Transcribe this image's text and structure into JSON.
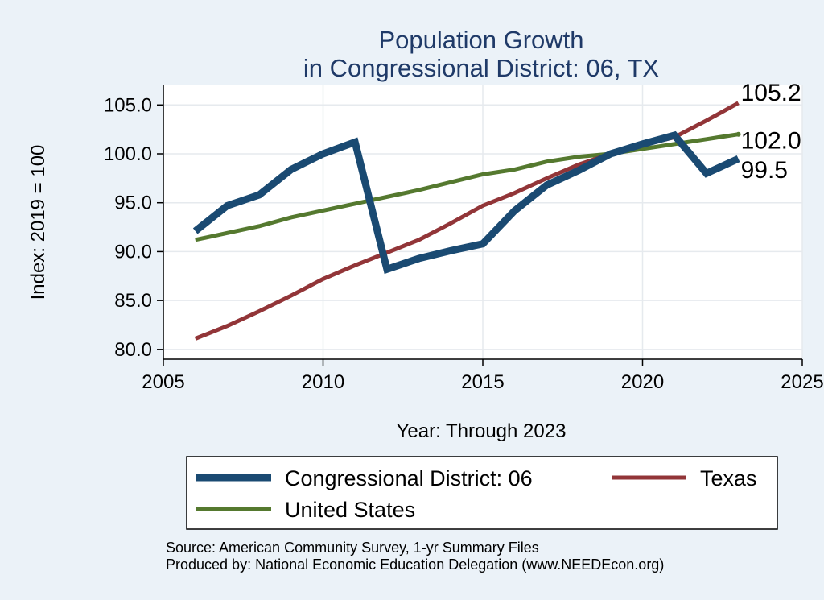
{
  "chart_data": {
    "type": "line",
    "title": [
      "Population Growth",
      "in Congressional District: 06, TX"
    ],
    "xlabel": "Year: Through 2023",
    "ylabel": "Index: 2019 = 100",
    "xlim": [
      2005,
      2025
    ],
    "ylim": [
      79,
      107
    ],
    "x_ticks": [
      2005,
      2010,
      2015,
      2020,
      2025
    ],
    "y_ticks": [
      80,
      85,
      90,
      95,
      100,
      105
    ],
    "y_tick_labels": [
      "80.0",
      "85.0",
      "90.0",
      "95.0",
      "100.0",
      "105.0"
    ],
    "grid": true,
    "legend_position": "bottom",
    "x": [
      2006,
      2007,
      2008,
      2009,
      2010,
      2011,
      2012,
      2013,
      2014,
      2015,
      2016,
      2017,
      2018,
      2019,
      2020,
      2021,
      2022,
      2023
    ],
    "series": [
      {
        "name": "Congressional District: 06",
        "color": "#1a4a72",
        "values": [
          92.1,
          94.7,
          95.8,
          98.4,
          100.0,
          101.2,
          88.2,
          89.3,
          90.1,
          90.8,
          94.2,
          96.8,
          98.3,
          100.0,
          101.0,
          101.9,
          98.0,
          99.5
        ],
        "end_label": "99.5"
      },
      {
        "name": "Texas",
        "color": "#923538",
        "values": [
          81.1,
          82.4,
          83.9,
          85.5,
          87.2,
          88.6,
          89.9,
          91.2,
          92.9,
          94.7,
          96.0,
          97.5,
          98.9,
          100.0,
          100.9,
          101.7,
          103.4,
          105.2
        ],
        "end_label": "105.2"
      },
      {
        "name": "United States",
        "color": "#55792f",
        "values": [
          91.2,
          91.9,
          92.6,
          93.5,
          94.2,
          94.9,
          95.6,
          96.3,
          97.1,
          97.9,
          98.4,
          99.2,
          99.7,
          100.0,
          100.5,
          101.0,
          101.5,
          102.0
        ],
        "end_label": "102.0"
      }
    ],
    "notes": [
      "Source: American Community Survey, 1-yr Summary Files",
      "Produced by: National Economic Education Delegation (www.NEEDEcon.org)"
    ]
  }
}
